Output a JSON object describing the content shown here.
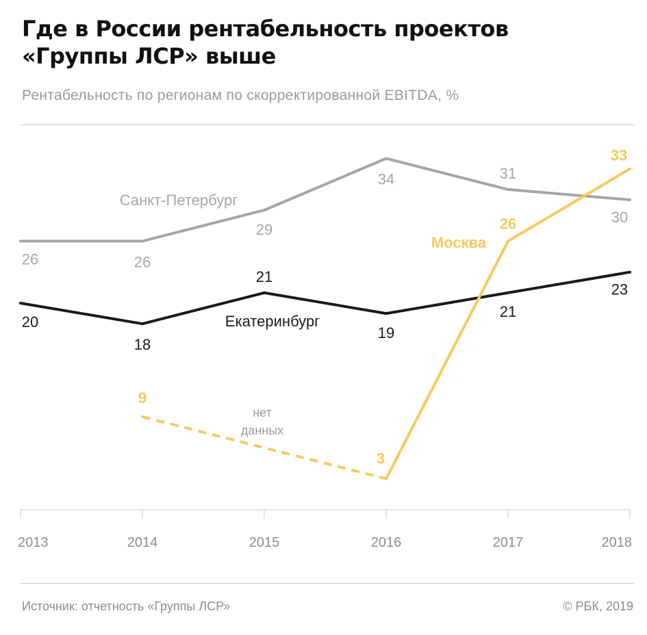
{
  "header": {
    "title_line1": "Где в России рентабельность проектов",
    "title_line2": "«Группы ЛСР» выше",
    "subtitle": "Рентабельность по регионам по скорректированной EBITDA, %"
  },
  "footer": {
    "source": "Источник: отчетность «Группы ЛСР»",
    "copyright": "© РБК, 2019"
  },
  "colors": {
    "spb": "#a6a6a6",
    "ekb": "#1a1a1a",
    "msk": "#fbc860",
    "axis": "#c8c8c8",
    "tick_label": "#8c8c8c"
  },
  "chart_data": {
    "type": "line",
    "x": [
      "2013",
      "2014",
      "2015",
      "2016",
      "2017",
      "2018"
    ],
    "ylim": [
      0,
      35
    ],
    "grid": false,
    "legend": "inline-labels",
    "series": [
      {
        "name": "Санкт-Петербург",
        "values": [
          26,
          26,
          29,
          34,
          31,
          30
        ],
        "labels": [
          "26",
          "26",
          "29",
          "34",
          "31",
          "30"
        ]
      },
      {
        "name": "Екатеринбург",
        "values": [
          20,
          18,
          21,
          19,
          21,
          23
        ],
        "labels": [
          "20",
          "18",
          "21",
          "19",
          "21",
          "23"
        ]
      },
      {
        "name": "Москва",
        "values": [
          null,
          9,
          null,
          3,
          26,
          33
        ],
        "labels": [
          "",
          "9",
          "",
          "3",
          "26",
          "33"
        ],
        "dashed_segment": [
          "2014",
          "2016"
        ]
      }
    ],
    "annotations": [
      "нет",
      "данных"
    ]
  }
}
